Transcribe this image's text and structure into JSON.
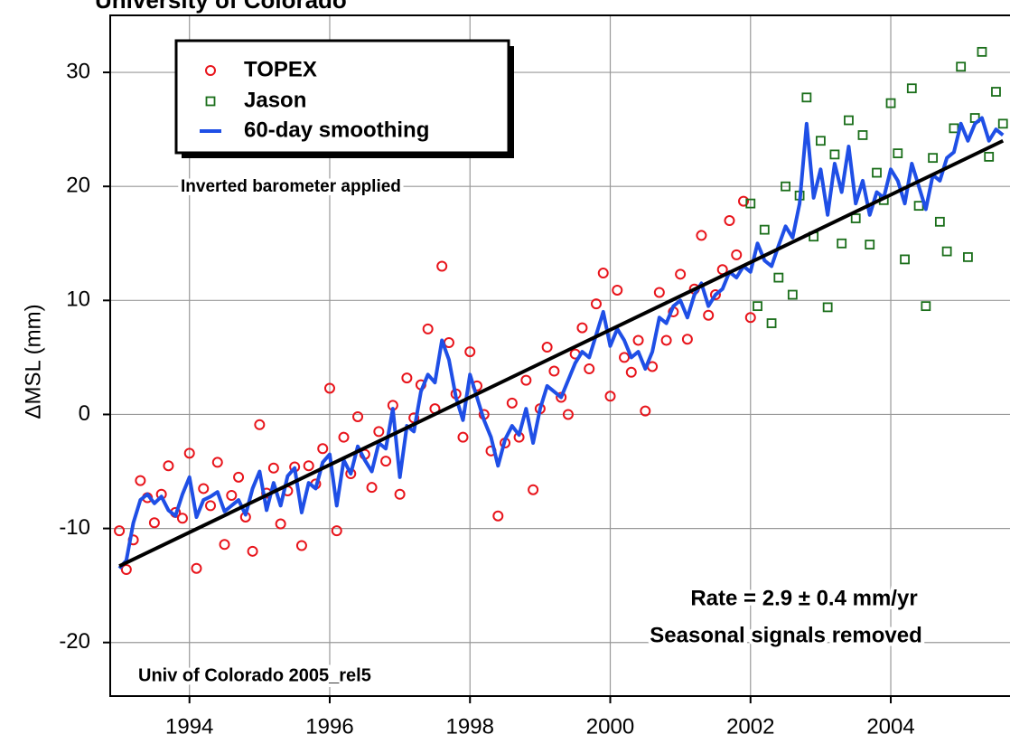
{
  "chart_data": {
    "type": "scatter",
    "title": "University of Colorado",
    "y_label": "ΔMSL  (mm)",
    "annotations": [
      "Inverted barometer applied",
      "Rate = 2.9 ± 0.4 mm/yr",
      "Seasonal signals removed",
      "Univ of Colorado 2005_rel5"
    ],
    "xlim": [
      1992.87,
      2005.7
    ],
    "ylim": [
      -24.7,
      35
    ],
    "xticks": [
      1994,
      1996,
      1998,
      2000,
      2002,
      2004
    ],
    "yticks": [
      -20,
      -10,
      0,
      10,
      20,
      30
    ],
    "grid": true,
    "legend": "top-left",
    "series": [
      {
        "name": "TOPEX",
        "color": "#e8141b",
        "marker": "circle",
        "x": [
          1993.0,
          1993.1,
          1993.2,
          1993.3,
          1993.4,
          1993.5,
          1993.6,
          1993.7,
          1993.8,
          1993.9,
          1994.0,
          1994.1,
          1994.2,
          1994.3,
          1994.4,
          1994.5,
          1994.6,
          1994.7,
          1994.8,
          1994.9,
          1995.0,
          1995.1,
          1995.2,
          1995.3,
          1995.4,
          1995.5,
          1995.6,
          1995.7,
          1995.8,
          1995.9,
          1996.0,
          1996.1,
          1996.2,
          1996.3,
          1996.4,
          1996.5,
          1996.6,
          1996.7,
          1996.8,
          1996.9,
          1997.0,
          1997.1,
          1997.2,
          1997.3,
          1997.4,
          1997.5,
          1997.6,
          1997.7,
          1997.8,
          1997.9,
          1998.0,
          1998.1,
          1998.2,
          1998.3,
          1998.4,
          1998.5,
          1998.6,
          1998.7,
          1998.8,
          1998.9,
          1999.0,
          1999.1,
          1999.2,
          1999.3,
          1999.4,
          1999.5,
          1999.6,
          1999.7,
          1999.8,
          1999.9,
          2000.0,
          2000.1,
          2000.2,
          2000.3,
          2000.4,
          2000.5,
          2000.6,
          2000.7,
          2000.8,
          2000.9,
          2001.0,
          2001.1,
          2001.2,
          2001.3,
          2001.4,
          2001.5,
          2001.6,
          2001.7,
          2001.8,
          2001.9,
          2002.0
        ],
        "values": [
          -10.2,
          -13.6,
          -11.0,
          -5.8,
          -7.3,
          -9.5,
          -7.0,
          -4.5,
          -8.6,
          -9.1,
          -3.4,
          -13.5,
          -6.5,
          -8.0,
          -4.2,
          -11.4,
          -7.1,
          -5.5,
          -9.0,
          -12.0,
          -0.9,
          -6.9,
          -4.7,
          -9.6,
          -6.7,
          -4.6,
          -11.5,
          -4.5,
          -6.1,
          -3.0,
          2.3,
          -10.2,
          -2.0,
          -5.2,
          -0.2,
          -3.5,
          -6.4,
          -1.5,
          -4.1,
          0.8,
          -7.0,
          3.2,
          -0.3,
          2.6,
          7.5,
          0.5,
          13.0,
          6.3,
          1.8,
          -2.0,
          5.5,
          2.5,
          0.0,
          -3.2,
          -8.9,
          -2.5,
          1.0,
          -2.0,
          3.0,
          -6.6,
          0.5,
          5.9,
          3.8,
          1.5,
          0.0,
          5.3,
          7.6,
          4.0,
          9.7,
          12.4,
          1.6,
          10.9,
          5.0,
          3.7,
          6.5,
          0.3,
          4.2,
          10.7,
          6.5,
          9.0,
          12.3,
          6.6,
          11.0,
          15.7,
          8.7,
          10.5,
          12.7,
          17.0,
          14.0,
          18.7,
          8.5
        ]
      },
      {
        "name": "Jason",
        "color": "#1a6e1a",
        "marker": "square",
        "x": [
          2002.0,
          2002.1,
          2002.2,
          2002.3,
          2002.4,
          2002.5,
          2002.6,
          2002.7,
          2002.8,
          2002.9,
          2003.0,
          2003.1,
          2003.2,
          2003.3,
          2003.4,
          2003.5,
          2003.6,
          2003.7,
          2003.8,
          2003.9,
          2004.0,
          2004.1,
          2004.2,
          2004.3,
          2004.4,
          2004.5,
          2004.6,
          2004.7,
          2004.8,
          2004.9,
          2005.0,
          2005.1,
          2005.2,
          2005.3,
          2005.4,
          2005.5,
          2005.6
        ],
        "values": [
          18.5,
          9.5,
          16.2,
          8.0,
          12.0,
          20.0,
          10.5,
          19.2,
          27.8,
          15.6,
          24.0,
          9.4,
          22.8,
          15.0,
          25.8,
          17.2,
          24.5,
          14.9,
          21.2,
          18.8,
          27.3,
          22.9,
          13.6,
          28.6,
          18.3,
          9.5,
          22.5,
          16.9,
          14.3,
          25.1,
          30.5,
          13.8,
          26.0,
          31.8,
          22.6,
          28.3,
          25.5
        ]
      },
      {
        "name": "60-day smoothing",
        "color": "#1f4fe6",
        "marker": "line",
        "x": [
          1993.0,
          1993.1,
          1993.2,
          1993.3,
          1993.4,
          1993.5,
          1993.6,
          1993.7,
          1993.8,
          1993.9,
          1994.0,
          1994.1,
          1994.2,
          1994.3,
          1994.4,
          1994.5,
          1994.6,
          1994.7,
          1994.8,
          1994.9,
          1995.0,
          1995.1,
          1995.2,
          1995.3,
          1995.4,
          1995.5,
          1995.6,
          1995.7,
          1995.8,
          1995.9,
          1996.0,
          1996.1,
          1996.2,
          1996.3,
          1996.4,
          1996.5,
          1996.6,
          1996.7,
          1996.8,
          1996.9,
          1997.0,
          1997.1,
          1997.2,
          1997.3,
          1997.4,
          1997.5,
          1997.6,
          1997.7,
          1997.8,
          1997.9,
          1998.0,
          1998.1,
          1998.2,
          1998.3,
          1998.4,
          1998.5,
          1998.6,
          1998.7,
          1998.8,
          1998.9,
          1999.0,
          1999.1,
          1999.2,
          1999.3,
          1999.4,
          1999.5,
          1999.6,
          1999.7,
          1999.8,
          1999.9,
          2000.0,
          2000.1,
          2000.2,
          2000.3,
          2000.4,
          2000.5,
          2000.6,
          2000.7,
          2000.8,
          2000.9,
          2001.0,
          2001.1,
          2001.2,
          2001.3,
          2001.4,
          2001.5,
          2001.6,
          2001.7,
          2001.8,
          2001.9,
          2002.0,
          2002.1,
          2002.2,
          2002.3,
          2002.4,
          2002.5,
          2002.6,
          2002.7,
          2002.8,
          2002.9,
          2003.0,
          2003.1,
          2003.2,
          2003.3,
          2003.4,
          2003.5,
          2003.6,
          2003.7,
          2003.8,
          2003.9,
          2004.0,
          2004.1,
          2004.2,
          2004.3,
          2004.4,
          2004.5,
          2004.6,
          2004.7,
          2004.8,
          2004.9,
          2005.0,
          2005.1,
          2005.2,
          2005.3,
          2005.4,
          2005.5,
          2005.6
        ],
        "values": [
          -13.5,
          -12.8,
          -9.5,
          -7.5,
          -7.0,
          -7.8,
          -7.2,
          -8.4,
          -8.9,
          -7.0,
          -5.5,
          -9.0,
          -7.5,
          -7.2,
          -6.8,
          -8.5,
          -8.0,
          -7.5,
          -8.8,
          -6.5,
          -5.0,
          -8.4,
          -6.0,
          -8.0,
          -5.4,
          -4.7,
          -8.6,
          -6.0,
          -6.5,
          -4.2,
          -3.5,
          -8.0,
          -4.0,
          -5.2,
          -2.8,
          -4.0,
          -5.0,
          -2.5,
          -3.0,
          0.5,
          -5.5,
          -1.0,
          -1.5,
          2.0,
          3.5,
          2.8,
          6.5,
          4.8,
          1.5,
          -0.5,
          3.5,
          1.5,
          -0.5,
          -2.0,
          -4.5,
          -2.2,
          -1.0,
          -1.8,
          0.5,
          -2.5,
          0.5,
          2.5,
          2.0,
          1.5,
          3.0,
          4.5,
          5.5,
          5.0,
          7.0,
          9.0,
          6.0,
          7.5,
          6.5,
          5.0,
          5.5,
          4.0,
          5.5,
          8.5,
          8.0,
          9.5,
          10.0,
          8.5,
          10.5,
          11.5,
          9.5,
          10.5,
          11.0,
          12.5,
          12.0,
          13.0,
          12.5,
          15.0,
          13.5,
          13.0,
          14.8,
          16.5,
          15.5,
          18.5,
          25.5,
          19.0,
          21.5,
          17.5,
          22.0,
          19.5,
          23.5,
          18.5,
          20.5,
          17.5,
          19.5,
          19.0,
          21.5,
          20.5,
          18.5,
          22.0,
          20.0,
          18.0,
          21.0,
          20.5,
          22.5,
          23.0,
          25.5,
          24.0,
          25.5,
          26.0,
          24.0,
          25.0,
          24.5
        ]
      }
    ],
    "trend_line": {
      "color": "#000000",
      "x": [
        1993.0,
        2005.6
      ],
      "values": [
        -13.3,
        24.0
      ]
    }
  }
}
